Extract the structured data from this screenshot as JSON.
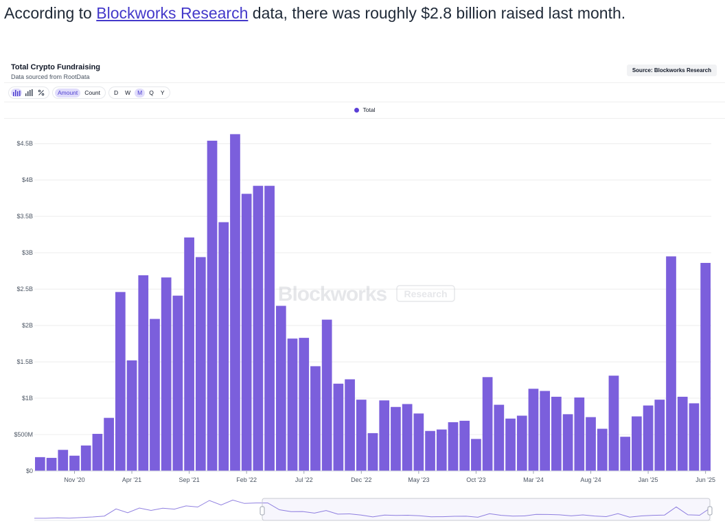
{
  "intro": {
    "prefix": "According to ",
    "link": "Blockworks Research",
    "suffix": " data, there was roughly $2.8 billion raised last month."
  },
  "card": {
    "title": "Total Crypto Fundraising",
    "subtitle": "Data sourced from RootData",
    "source_badge": "Source: Blockworks Research",
    "metric_options": [
      "Amount",
      "Count"
    ],
    "metric_selected": "Amount",
    "period_options": [
      "D",
      "W",
      "M",
      "Q",
      "Y"
    ],
    "period_selected": "M",
    "chart_type_icons": [
      "bar-chart-icon",
      "stacked-bar-icon",
      "percent-icon"
    ],
    "watermark_main": "Blockworks",
    "watermark_badge": "Research"
  },
  "colors": {
    "bar": "#7b5fdc",
    "accent": "#5b3fd6",
    "brush_line": "#8f7fe0"
  },
  "chart_data": {
    "type": "bar",
    "title": "Total Crypto Fundraising",
    "legend": [
      "Total"
    ],
    "legend_position": "top-center",
    "grid": true,
    "ylim": [
      0,
      4.7
    ],
    "y_unit": "billion USD",
    "y_ticks": [
      {
        "v": 0,
        "label": "$0"
      },
      {
        "v": 0.5,
        "label": "$500M"
      },
      {
        "v": 1,
        "label": "$1B"
      },
      {
        "v": 1.5,
        "label": "$1.5B"
      },
      {
        "v": 2,
        "label": "$2B"
      },
      {
        "v": 2.5,
        "label": "$2.5B"
      },
      {
        "v": 3,
        "label": "$3B"
      },
      {
        "v": 3.5,
        "label": "$3.5B"
      },
      {
        "v": 4,
        "label": "$4B"
      },
      {
        "v": 4.5,
        "label": "$4.5B"
      }
    ],
    "x_ticks": [
      {
        "i": 3,
        "label": "Nov '20"
      },
      {
        "i": 8,
        "label": "Apr '21"
      },
      {
        "i": 13,
        "label": "Sep '21"
      },
      {
        "i": 18,
        "label": "Feb '22"
      },
      {
        "i": 23,
        "label": "Jul '22"
      },
      {
        "i": 28,
        "label": "Dec '22"
      },
      {
        "i": 33,
        "label": "May '23"
      },
      {
        "i": 38,
        "label": "Oct '23"
      },
      {
        "i": 43,
        "label": "Mar '24"
      },
      {
        "i": 48,
        "label": "Aug '24"
      },
      {
        "i": 53,
        "label": "Jan '25"
      },
      {
        "i": 58,
        "label": "Jun '25"
      }
    ],
    "categories": [
      "2020-08",
      "2020-09",
      "2020-10",
      "2020-11",
      "2020-12",
      "2021-01",
      "2021-02",
      "2021-03",
      "2021-04",
      "2021-05",
      "2021-06",
      "2021-07",
      "2021-08",
      "2021-09",
      "2021-10",
      "2021-11",
      "2021-12",
      "2022-01",
      "2022-02",
      "2022-03",
      "2022-04",
      "2022-05",
      "2022-06",
      "2022-07",
      "2022-08",
      "2022-09",
      "2022-10",
      "2022-11",
      "2022-12",
      "2023-01",
      "2023-02",
      "2023-03",
      "2023-04",
      "2023-05",
      "2023-06",
      "2023-07",
      "2023-08",
      "2023-09",
      "2023-10",
      "2023-11",
      "2023-12",
      "2024-01",
      "2024-02",
      "2024-03",
      "2024-04",
      "2024-05",
      "2024-06",
      "2024-07",
      "2024-08",
      "2024-09",
      "2024-10",
      "2024-11",
      "2024-12",
      "2025-01",
      "2025-02",
      "2025-03",
      "2025-04",
      "2025-05",
      "2025-06"
    ],
    "series": [
      {
        "name": "Total",
        "values": [
          0.19,
          0.18,
          0.29,
          0.21,
          0.35,
          0.51,
          0.73,
          2.46,
          1.52,
          2.69,
          2.09,
          2.66,
          2.41,
          3.21,
          2.94,
          4.54,
          3.42,
          4.63,
          3.81,
          3.92,
          3.92,
          2.27,
          1.82,
          1.83,
          1.44,
          2.08,
          1.2,
          1.26,
          0.98,
          0.52,
          0.97,
          0.88,
          0.92,
          0.79,
          0.55,
          0.57,
          0.67,
          0.69,
          0.44,
          1.29,
          0.91,
          0.72,
          0.76,
          1.13,
          1.1,
          1.02,
          0.78,
          1.01,
          0.74,
          0.58,
          1.31,
          0.47,
          0.75,
          0.9,
          0.98,
          2.95,
          1.02,
          0.93,
          2.86
        ]
      }
    ]
  }
}
